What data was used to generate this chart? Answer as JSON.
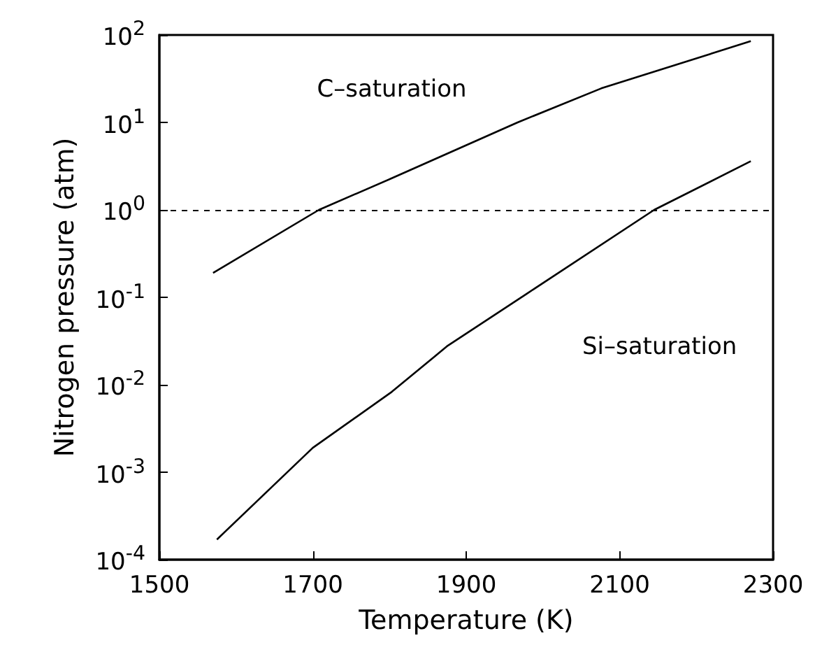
{
  "chart_data": {
    "type": "line",
    "xlabel": "Temperature (K)",
    "ylabel": "Nitrogen pressure (atm)",
    "log": "y",
    "xlim": [
      1500,
      2300
    ],
    "xticks": [
      1500,
      1700,
      1900,
      2100,
      2300
    ],
    "ylim": [
      0.0001,
      100
    ],
    "yticks": [
      {
        "value": 0.0001,
        "label": "10$^{-4}$"
      },
      {
        "value": 0.001,
        "label": "10$^{-3}$"
      },
      {
        "value": 0.01,
        "label": "10$^{-2}$"
      },
      {
        "value": 0.1,
        "label": "10$^{-1}$"
      },
      {
        "value": 1,
        "label": "10$^{0}$"
      },
      {
        "value": 10,
        "label": "10$^{1}$"
      },
      {
        "value": 100,
        "label": "10$^{2}$"
      }
    ],
    "grid": false,
    "legend": false,
    "marker": "none",
    "line_style": "solid",
    "series": [
      {
        "name": "C–saturation",
        "color": "#000000",
        "x": [
          1570,
          1708,
          1803,
          1967,
          2076,
          2271
        ],
        "values": [
          0.19,
          1,
          2.3,
          10,
          24.5,
          85
        ]
      },
      {
        "name": "Si–saturation",
        "color": "#000000",
        "x": [
          1575,
          1700,
          1803,
          1876,
          1979,
          2145,
          2271
        ],
        "values": [
          0.00017,
          0.0019,
          0.0083,
          0.028,
          0.11,
          1,
          3.6
        ]
      }
    ],
    "ref_lines": [
      {
        "axis": "y",
        "value": 1,
        "line_style": "dashed",
        "color": "#000000"
      }
    ]
  }
}
